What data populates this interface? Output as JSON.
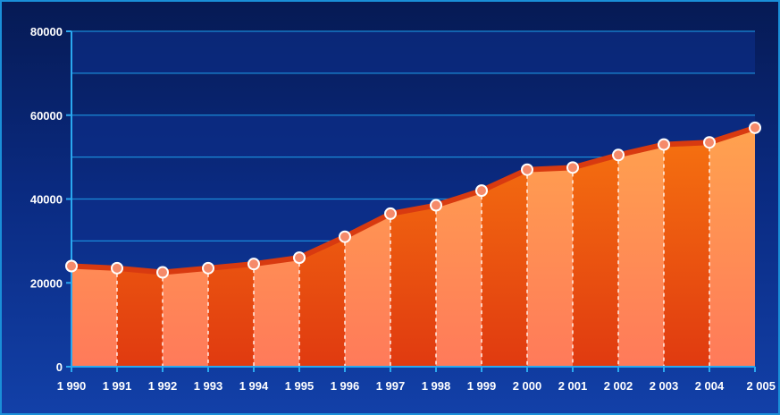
{
  "chart_data": {
    "type": "area",
    "title": "",
    "xlabel": "",
    "ylabel": "",
    "categories": [
      "1 990",
      "1 991",
      "1 992",
      "1 993",
      "1 994",
      "1 995",
      "1 996",
      "1 997",
      "1 998",
      "1 999",
      "2 000",
      "2 001",
      "2 002",
      "2 003",
      "2 004",
      "2 005"
    ],
    "series": [
      {
        "values": [
          24000,
          23500,
          22500,
          23500,
          24500,
          26000,
          31000,
          36500,
          38500,
          42000,
          47000,
          47500,
          50500,
          53000,
          53500,
          57000
        ]
      }
    ],
    "ylim": [
      0,
      80000
    ],
    "yticks": [
      0,
      20000,
      40000,
      60000,
      80000
    ],
    "grid": true,
    "legend": "none",
    "colors": {
      "line": "#d83a10",
      "marker_fill": "#f58a6a",
      "marker_stroke": "#ffffff",
      "fill_light_top": "#ffb24a",
      "fill_light_bottom": "#ff7a5a",
      "fill_dark_top": "#ff8a10",
      "fill_dark_bottom": "#e03a10",
      "grid": "#1e9ce8",
      "axis": "#2aa8f0",
      "band": "#0e2f8a"
    }
  }
}
